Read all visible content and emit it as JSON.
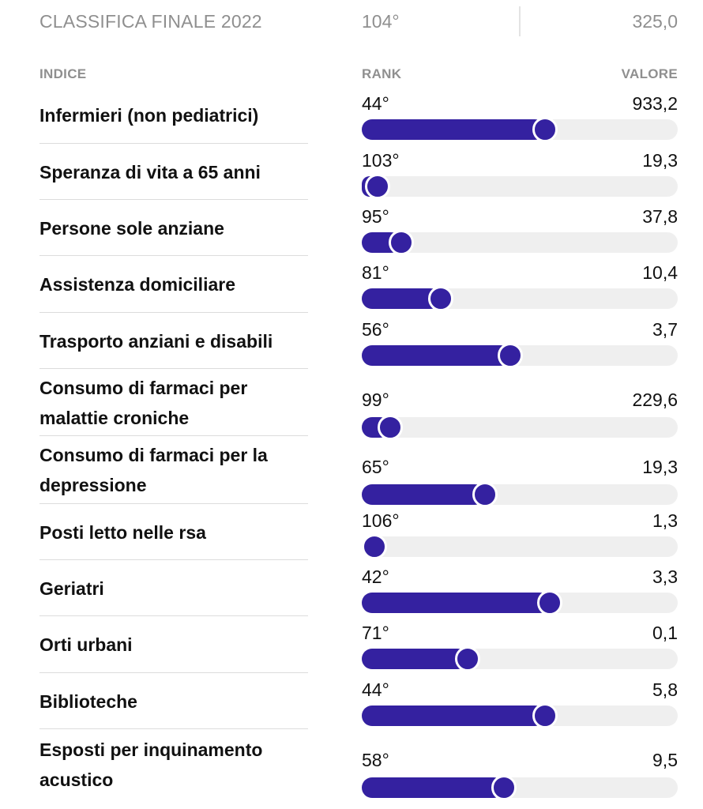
{
  "summary": {
    "label": "CLASSIFICA FINALE 2022",
    "rank": "104°",
    "value": "325,0"
  },
  "headers": {
    "indice": "INDICE",
    "rank": "RANK",
    "valore": "VALORE"
  },
  "colors": {
    "accent": "#3421a0",
    "track": "#efefef",
    "muted": "#8f8f8f"
  },
  "indicators": [
    {
      "name": "Infermieri (non pediatrici)",
      "rank": "44°",
      "value": "933,2",
      "level": 0.58
    },
    {
      "name": "Speranza di vita a 65 anni",
      "rank": "103°",
      "value": "19,3",
      "level": 0.05
    },
    {
      "name": "Persone sole anziane",
      "rank": "95°",
      "value": "37,8",
      "level": 0.125
    },
    {
      "name": "Assistenza domiciliare",
      "rank": "81°",
      "value": "10,4",
      "level": 0.25
    },
    {
      "name": "Trasporto anziani e disabili",
      "rank": "56°",
      "value": "3,7",
      "level": 0.47
    },
    {
      "name": "Consumo di farmaci per malattie croniche",
      "rank": "99°",
      "value": "229,6",
      "level": 0.09
    },
    {
      "name": "Consumo di farmaci per la depressione",
      "rank": "65°",
      "value": "19,3",
      "level": 0.39
    },
    {
      "name": "Posti letto nelle rsa",
      "rank": "106°",
      "value": "1,3",
      "level": 0.02
    },
    {
      "name": "Geriatri",
      "rank": "42°",
      "value": "3,3",
      "level": 0.595
    },
    {
      "name": "Orti urbani",
      "rank": "71°",
      "value": "0,1",
      "level": 0.335
    },
    {
      "name": "Biblioteche",
      "rank": "44°",
      "value": "5,8",
      "level": 0.58
    },
    {
      "name": "Esposti per inquinamento acustico",
      "rank": "58°",
      "value": "9,5",
      "level": 0.45
    }
  ]
}
